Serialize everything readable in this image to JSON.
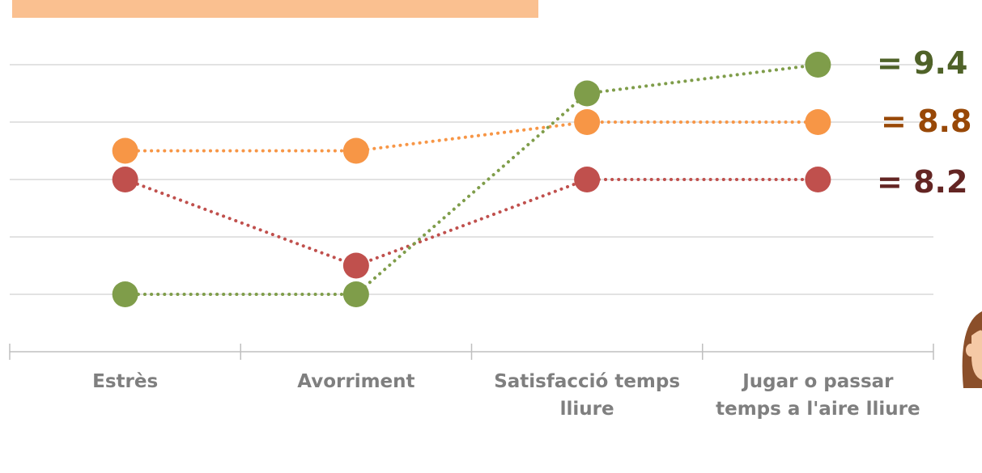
{
  "chart_data": {
    "type": "line",
    "categories": [
      "Estrès",
      "Avorriment",
      "Satisfacció temps lliure",
      "Jugar o passar temps a l'aire lliure"
    ],
    "series": [
      {
        "color": "#c0504d",
        "values": [
          8.2,
          7.3,
          8.2,
          8.2
        ]
      },
      {
        "color": "#f79646",
        "values": [
          8.5,
          8.5,
          8.8,
          8.8
        ]
      },
      {
        "color": "#7f9d4a",
        "values": [
          7.0,
          7.0,
          9.1,
          9.4
        ]
      }
    ],
    "ylim": [
      6.4,
      10.0
    ],
    "yticks": [
      7.0,
      7.6,
      8.2,
      8.8,
      9.4
    ],
    "grid": true,
    "annotations": [
      {
        "text": "= 9.4",
        "color": "#4f6228"
      },
      {
        "text": "= 8.8",
        "color": "#984807"
      },
      {
        "text": "= 8.2",
        "color": "#632523"
      }
    ]
  }
}
